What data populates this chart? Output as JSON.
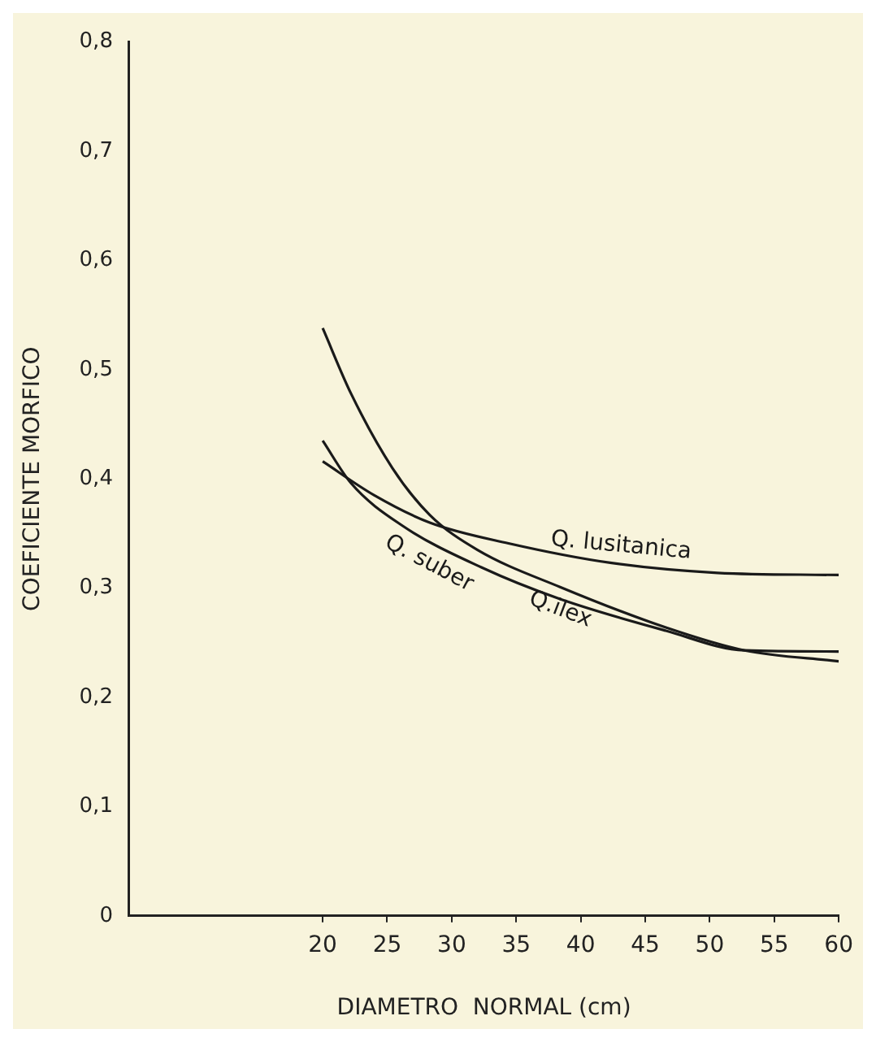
{
  "chart_data": {
    "type": "line",
    "xlabel": "DIAMETRO  NORMAL (cm)",
    "ylabel": "COEFICIENTE MORFICO",
    "xlim": [
      5,
      60
    ],
    "xticks": [
      20,
      25,
      30,
      35,
      40,
      45,
      50,
      55,
      60
    ],
    "ylim": [
      0,
      0.8
    ],
    "yticks": [
      0,
      {
        "value": 0.1,
        "label": "0,1"
      },
      {
        "value": 0.2,
        "label": "0,2"
      },
      {
        "value": 0.3,
        "label": "0,3"
      },
      {
        "value": 0.4,
        "label": "0,4"
      },
      {
        "value": 0.5,
        "label": "0,5"
      },
      {
        "value": 0.6,
        "label": "0,6"
      },
      {
        "value": 0.7,
        "label": "0,7"
      },
      {
        "value": 0.8,
        "label": "0,8"
      }
    ],
    "grid": false,
    "legend": false,
    "marker": "none",
    "line_style": "solid",
    "series": [
      {
        "name": "Q. lusitanica",
        "color": "#1a1a1a",
        "x": [
          20,
          24,
          28.3,
          34.4,
          42.4,
          50.6,
          60
        ],
        "values": [
          0.416,
          0.385,
          0.36,
          0.341,
          0.323,
          0.314,
          0.312
        ]
      },
      {
        "name": "Q.ilex",
        "color": "#1a1a1a",
        "x": [
          20,
          22.2,
          25.4,
          28.3,
          32,
          38.4,
          46.6,
          52.7,
          60
        ],
        "values": [
          0.538,
          0.478,
          0.41,
          0.367,
          0.335,
          0.301,
          0.264,
          0.243,
          0.233
        ]
      },
      {
        "name": "Q. suber",
        "color": "#1a1a1a",
        "x": [
          20,
          22.2,
          26.2,
          32.3,
          38.4,
          46.6,
          52.7,
          60
        ],
        "values": [
          0.435,
          0.396,
          0.357,
          0.319,
          0.29,
          0.261,
          0.243,
          0.242
        ]
      }
    ]
  }
}
